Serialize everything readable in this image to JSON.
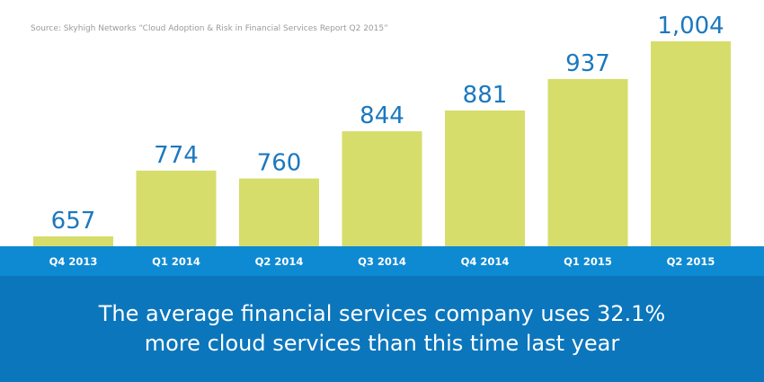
{
  "source": "Source: Skyhigh Networks “Cloud Adoption & Risk in Financial Services Report Q2 2015”",
  "caption": {
    "line1": "The average financial services company uses 32.1%",
    "line2": "more cloud services than this time last year"
  },
  "colors": {
    "bar": "#d6dd6b",
    "value_label": "#1b78bf",
    "axis_band": "#0e8ad2",
    "footer": "#0b76bc",
    "tick_label": "#ffffff"
  },
  "chart_data": {
    "type": "bar",
    "categories": [
      "Q4 2013",
      "Q1 2014",
      "Q2 2014",
      "Q3 2014",
      "Q4 2014",
      "Q1 2015",
      "Q2 2015"
    ],
    "values": [
      657,
      774,
      760,
      844,
      881,
      937,
      1004
    ],
    "value_labels": [
      "657",
      "774",
      "760",
      "844",
      "881",
      "937",
      "1,004"
    ],
    "title": "",
    "xlabel": "",
    "ylabel": "",
    "grid": false,
    "legend": "none"
  }
}
